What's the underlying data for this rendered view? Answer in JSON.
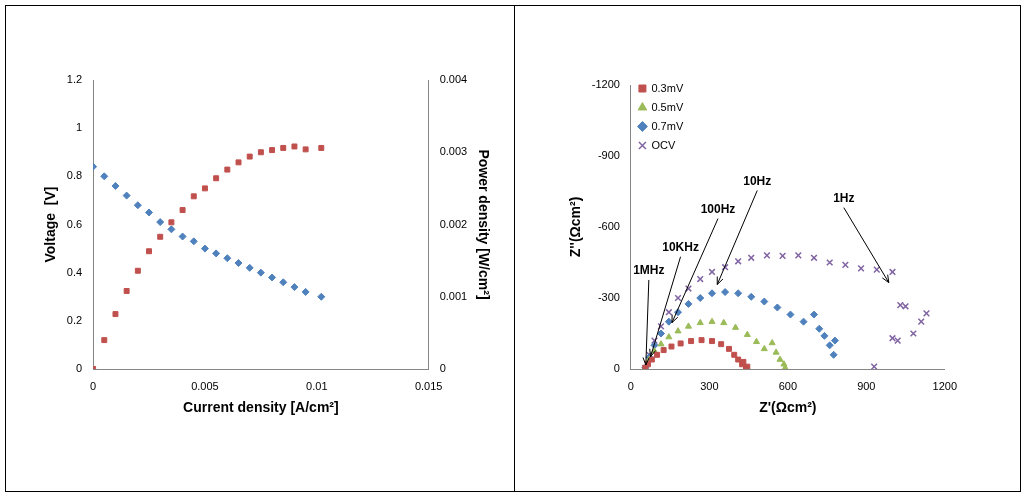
{
  "chart_data": [
    {
      "type": "scatter",
      "x_label": "Current density [A/cm²]",
      "y_label": "Voltage  [V]",
      "y2_label": "Power density [W/cm²]",
      "xlim": [
        0,
        0.015
      ],
      "xticks": [
        0,
        0.005,
        0.01,
        0.015
      ],
      "ylim": [
        0,
        1.2
      ],
      "yticks": [
        0,
        0.2,
        0.4,
        0.6,
        0.8,
        1,
        1.2
      ],
      "y2lim": [
        0,
        0.004
      ],
      "y2ticks": [
        0,
        0.001,
        0.002,
        0.003,
        0.004
      ],
      "grid": false,
      "series": [
        {
          "color": "#4f81bd",
          "marker": "diamond",
          "x": [
            0,
            0.0005,
            0.001,
            0.0015,
            0.002,
            0.0025,
            0.003,
            0.0035,
            0.004,
            0.0045,
            0.005,
            0.0055,
            0.006,
            0.0065,
            0.007,
            0.0075,
            0.008,
            0.0085,
            0.009,
            0.0095,
            0.0102
          ],
          "values": [
            0.84,
            0.8,
            0.76,
            0.72,
            0.68,
            0.65,
            0.61,
            0.58,
            0.55,
            0.53,
            0.5,
            0.48,
            0.46,
            0.44,
            0.42,
            0.4,
            0.38,
            0.36,
            0.34,
            0.32,
            0.3
          ]
        },
        {
          "color": "#c0504d",
          "marker": "square",
          "axis": "y2",
          "x": [
            0,
            0.0005,
            0.001,
            0.0015,
            0.002,
            0.0025,
            0.003,
            0.0035,
            0.004,
            0.0045,
            0.005,
            0.0055,
            0.006,
            0.0065,
            0.007,
            0.0075,
            0.008,
            0.0085,
            0.009,
            0.0095,
            0.0102
          ],
          "values": [
            0,
            0.0004,
            0.00076,
            0.00108,
            0.00136,
            0.00163,
            0.00183,
            0.00203,
            0.0022,
            0.00239,
            0.0025,
            0.00264,
            0.00276,
            0.00286,
            0.00294,
            0.003,
            0.00303,
            0.00306,
            0.00308,
            0.00304,
            0.00306
          ]
        }
      ]
    },
    {
      "type": "scatter",
      "x_label": "Z'(Ωcm²)",
      "y_label": "Z''(Ωcm²)",
      "xlim": [
        0,
        1200
      ],
      "xticks": [
        0,
        300,
        600,
        900,
        1200
      ],
      "ylim": [
        0,
        -1200
      ],
      "yticks": [
        0,
        -300,
        -600,
        -900,
        -1200
      ],
      "grid": false,
      "legend": "top-left",
      "series": [
        {
          "name": "0.3mV",
          "color": "#c0504d",
          "marker": "square",
          "x": [
            55,
            65,
            80,
            100,
            125,
            155,
            190,
            230,
            270,
            310,
            345,
            375,
            395,
            410,
            425,
            440,
            430,
            445
          ],
          "values": [
            -5,
            -20,
            -40,
            -60,
            -80,
            -95,
            -108,
            -118,
            -122,
            -118,
            -105,
            -85,
            -60,
            -40,
            -20,
            -5,
            -30,
            -10
          ]
        },
        {
          "name": "0.5mV",
          "color": "#9bbb59",
          "marker": "triangle",
          "x": [
            55,
            70,
            90,
            115,
            145,
            180,
            220,
            265,
            310,
            355,
            400,
            445,
            480,
            510,
            540,
            555,
            570,
            585,
            590
          ],
          "values": [
            -5,
            -40,
            -75,
            -105,
            -135,
            -160,
            -180,
            -195,
            -200,
            -195,
            -175,
            -145,
            -115,
            -85,
            -110,
            -70,
            -40,
            -20,
            -5
          ]
        },
        {
          "name": "0.7mV",
          "color": "#4f81bd",
          "marker": "diamond",
          "x": [
            55,
            70,
            90,
            115,
            145,
            180,
            220,
            265,
            310,
            360,
            410,
            460,
            510,
            560,
            610,
            660,
            700,
            720,
            740,
            760,
            775,
            780
          ],
          "values": [
            -5,
            -50,
            -100,
            -150,
            -200,
            -240,
            -275,
            -300,
            -320,
            -325,
            -320,
            -305,
            -285,
            -260,
            -230,
            -200,
            -230,
            -170,
            -140,
            -100,
            -60,
            -120
          ]
        },
        {
          "name": "OCV",
          "color": "#8064a2",
          "marker": "cross",
          "x": [
            55,
            70,
            90,
            115,
            145,
            180,
            220,
            265,
            310,
            360,
            410,
            460,
            520,
            580,
            640,
            700,
            760,
            820,
            880,
            940,
            1000,
            1030,
            1050,
            1110,
            1130,
            1000,
            1080,
            1020,
            930
          ],
          "values": [
            -5,
            -60,
            -120,
            -180,
            -240,
            -300,
            -340,
            -380,
            -410,
            -430,
            -455,
            -470,
            -480,
            -478,
            -480,
            -470,
            -450,
            -440,
            -425,
            -420,
            -410,
            -270,
            -265,
            -200,
            -235,
            -130,
            -150,
            -120,
            -10
          ]
        }
      ],
      "annotations": [
        {
          "text": "1MHz",
          "x": 57,
          "y": -17
        },
        {
          "text": "10KHz",
          "x": 75,
          "y": -52
        },
        {
          "text": "100Hz",
          "x": 157,
          "y": -196
        },
        {
          "text": "10Hz",
          "x": 330,
          "y": -357
        },
        {
          "text": "1Hz",
          "x": 986,
          "y": -365
        }
      ]
    }
  ]
}
